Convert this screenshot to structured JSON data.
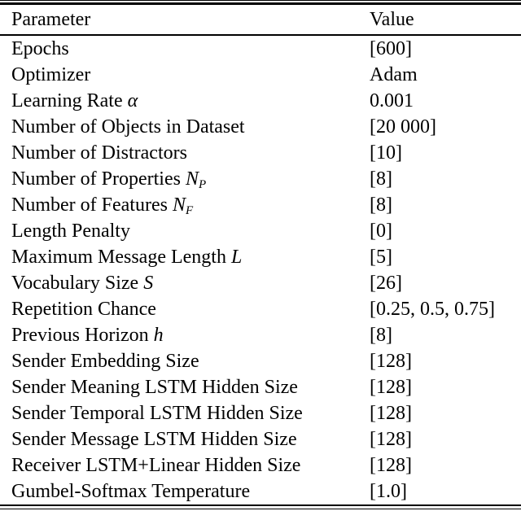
{
  "colors": {
    "background": "#ffffff",
    "text": "#000000",
    "rule": "#000000"
  },
  "table": {
    "columns": [
      "Parameter",
      "Value"
    ],
    "rows": [
      {
        "name": "Epochs",
        "symbol": "",
        "sub": "",
        "value": "[600]"
      },
      {
        "name": "Optimizer",
        "symbol": "",
        "sub": "",
        "value": "Adam"
      },
      {
        "name": "Learning Rate ",
        "symbol": "α",
        "sub": "",
        "value": "0.001"
      },
      {
        "name": "Number of Objects in Dataset",
        "symbol": "",
        "sub": "",
        "value": "[20 000]"
      },
      {
        "name": "Number of Distractors",
        "symbol": "",
        "sub": "",
        "value": "[10]"
      },
      {
        "name": "Number of Properties ",
        "symbol": "N",
        "sub": "P",
        "value": "[8]"
      },
      {
        "name": "Number of Features ",
        "symbol": "N",
        "sub": "F",
        "value": "[8]"
      },
      {
        "name": "Length Penalty",
        "symbol": "",
        "sub": "",
        "value": "[0]"
      },
      {
        "name": "Maximum Message Length ",
        "symbol": "L",
        "sub": "",
        "value": "[5]"
      },
      {
        "name": "Vocabulary Size ",
        "symbol": "S",
        "sub": "",
        "value": "[26]"
      },
      {
        "name": "Repetition Chance",
        "symbol": "",
        "sub": "",
        "value": "[0.25, 0.5, 0.75]"
      },
      {
        "name": "Previous Horizon ",
        "symbol": "h",
        "sub": "",
        "value": "[8]"
      },
      {
        "name": "Sender Embedding Size",
        "symbol": "",
        "sub": "",
        "value": "[128]"
      },
      {
        "name": "Sender Meaning LSTM Hidden Size",
        "symbol": "",
        "sub": "",
        "value": "[128]"
      },
      {
        "name": "Sender Temporal LSTM Hidden Size",
        "symbol": "",
        "sub": "",
        "value": "[128]"
      },
      {
        "name": "Sender Message LSTM Hidden Size",
        "symbol": "",
        "sub": "",
        "value": "[128]"
      },
      {
        "name": "Receiver LSTM+Linear Hidden Size",
        "symbol": "",
        "sub": "",
        "value": "[128]"
      },
      {
        "name": "Gumbel-Softmax Temperature",
        "symbol": "",
        "sub": "",
        "value": "[1.0]"
      }
    ]
  }
}
